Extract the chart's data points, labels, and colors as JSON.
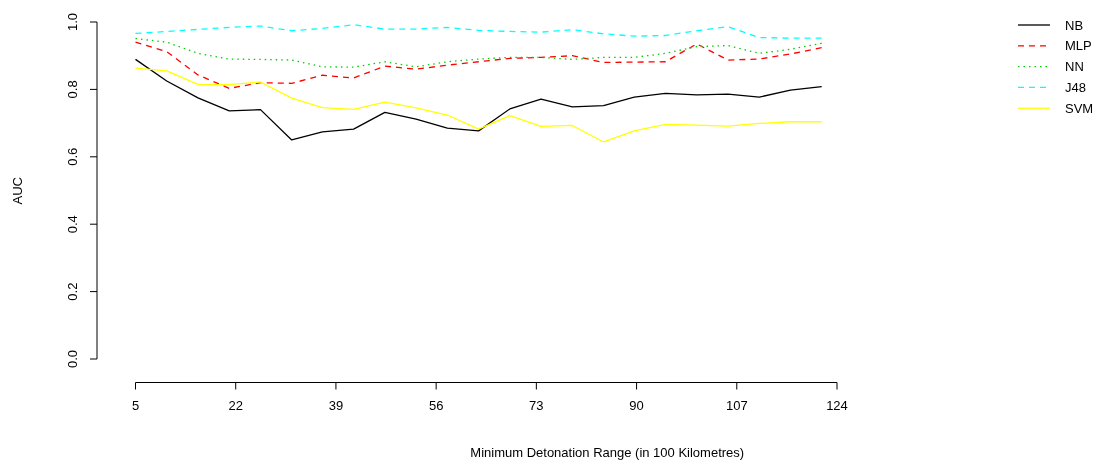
{
  "chart_data": {
    "type": "line",
    "xlabel": "Minimum Detonation Range (in 100 Kilometres)",
    "ylabel": "AUC",
    "x": [
      5,
      10.3,
      15.6,
      20.9,
      26.2,
      31.5,
      36.7,
      42,
      47.3,
      52.6,
      57.9,
      63.2,
      68.5,
      73.8,
      79.1,
      84.4,
      89.6,
      94.9,
      100.2,
      105.5,
      110.8,
      116.1,
      121.4
    ],
    "series": [
      {
        "name": "NB",
        "color": "#000000",
        "line_style": "solid",
        "values": [
          0.889,
          0.825,
          0.775,
          0.736,
          0.74,
          0.65,
          0.674,
          0.682,
          0.732,
          0.712,
          0.685,
          0.677,
          0.742,
          0.771,
          0.748,
          0.752,
          0.777,
          0.788,
          0.784,
          0.786,
          0.777,
          0.798,
          0.808
        ]
      },
      {
        "name": "MLP",
        "color": "#ff0000",
        "line_style": "dashed",
        "values": [
          0.94,
          0.912,
          0.843,
          0.803,
          0.82,
          0.818,
          0.842,
          0.834,
          0.869,
          0.86,
          0.872,
          0.882,
          0.892,
          0.895,
          0.9,
          0.88,
          0.881,
          0.882,
          0.935,
          0.887,
          0.89,
          0.905,
          0.924
        ]
      },
      {
        "name": "NN",
        "color": "#00cd00",
        "line_style": "dotted",
        "values": [
          0.951,
          0.94,
          0.907,
          0.89,
          0.889,
          0.887,
          0.867,
          0.866,
          0.882,
          0.867,
          0.882,
          0.89,
          0.895,
          0.895,
          0.889,
          0.895,
          0.895,
          0.907,
          0.927,
          0.93,
          0.907,
          0.919,
          0.937
        ]
      },
      {
        "name": "J48",
        "color": "#00ffff",
        "line_style": "dashed",
        "values": [
          0.966,
          0.972,
          0.978,
          0.984,
          0.988,
          0.974,
          0.981,
          0.992,
          0.979,
          0.979,
          0.984,
          0.975,
          0.972,
          0.97,
          0.977,
          0.965,
          0.958,
          0.96,
          0.974,
          0.986,
          0.954,
          0.952,
          0.952
        ]
      },
      {
        "name": "SVM",
        "color": "#ffff00",
        "line_style": "solid",
        "values": [
          0.863,
          0.855,
          0.815,
          0.814,
          0.822,
          0.774,
          0.746,
          0.741,
          0.762,
          0.745,
          0.724,
          0.682,
          0.722,
          0.69,
          0.693,
          0.644,
          0.677,
          0.696,
          0.694,
          0.691,
          0.699,
          0.704,
          0.704
        ]
      }
    ],
    "xlim": [
      5,
      124
    ],
    "xticks": [
      5,
      22,
      39,
      56,
      73,
      90,
      107,
      124
    ],
    "ylim": [
      0,
      1
    ],
    "yticks": [
      {
        "value": 0,
        "label": "0.0"
      },
      {
        "value": 0.2,
        "label": "0.2"
      },
      {
        "value": 0.4,
        "label": "0.4"
      },
      {
        "value": 0.6,
        "label": "0.6"
      },
      {
        "value": 0.8,
        "label": "0.8"
      },
      {
        "value": 1,
        "label": "1.0"
      }
    ],
    "legend": "top right",
    "grid": false
  }
}
